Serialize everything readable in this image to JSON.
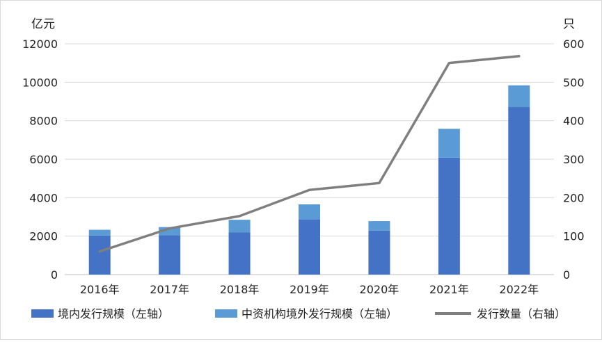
{
  "chart_data": {
    "type": "bar",
    "categories": [
      "2016年",
      "2017年",
      "2018年",
      "2019年",
      "2020年",
      "2021年",
      "2022年"
    ],
    "series": [
      {
        "name": "境内发行规模（左轴）",
        "axis": "left",
        "kind": "bar",
        "color": "#4472C4",
        "values": [
          2030,
          2050,
          2200,
          2870,
          2280,
          6080,
          8710
        ]
      },
      {
        "name": "中资机构境外发行规模（左轴）",
        "axis": "left",
        "kind": "bar",
        "color": "#5B9BD5",
        "values": [
          300,
          420,
          650,
          780,
          500,
          1500,
          1130
        ]
      },
      {
        "name": "发行数量（右轴）",
        "axis": "right",
        "kind": "line",
        "color": "#7F7F7F",
        "values": [
          60,
          120,
          152,
          220,
          238,
          550,
          568
        ]
      }
    ],
    "left_axis": {
      "unit": "亿元",
      "min": 0,
      "max": 12000,
      "ticks": [
        "0",
        "2000",
        "4000",
        "6000",
        "8000",
        "10000",
        "12000"
      ]
    },
    "right_axis": {
      "unit": "只",
      "min": 0,
      "max": 600,
      "ticks": [
        "0",
        "100",
        "200",
        "300",
        "400",
        "500",
        "600"
      ]
    },
    "grid": true,
    "legend_position": "bottom",
    "stacked": true
  }
}
